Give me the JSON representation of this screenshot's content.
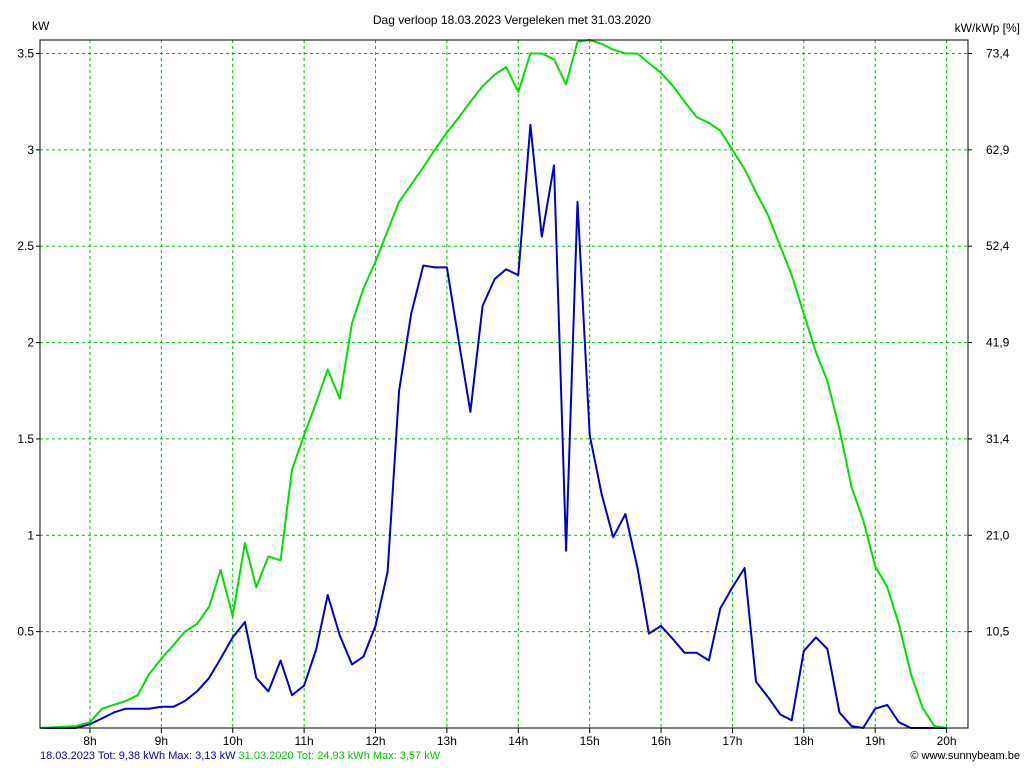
{
  "header": {
    "title": "Dag  verloop 18.03.2023   Vergeleken met 31.03.2020",
    "left_unit": "kW",
    "right_unit": "kW/kWp [%]"
  },
  "footer": {
    "blue_text": "18.03.2023 Tot: 9,38 kWh Max: 3,13 kW",
    "green_text": " 31.03.2020 Tot: 24,93 kWh Max: 3,57 kW",
    "credit": "© www.sunnybeam.be"
  },
  "colors": {
    "blue": "#0000cc",
    "green": "#00e000",
    "grid": "#00c000",
    "axis": "#000000"
  },
  "chart_data": {
    "type": "line",
    "title": "Dag  verloop 18.03.2023   Vergeleken met 31.03.2020",
    "ylabel": "kW",
    "ylabel_right": "kW/kWp [%]",
    "xlim": [
      7.3,
      20.3
    ],
    "ylim": [
      0,
      3.57
    ],
    "x_ticks": [
      8,
      9,
      10,
      11,
      12,
      13,
      14,
      15,
      16,
      17,
      18,
      19,
      20
    ],
    "x_tick_labels": [
      "8h",
      "9h",
      "10h",
      "11h",
      "12h",
      "13h",
      "14h",
      "15h",
      "16h",
      "17h",
      "18h",
      "19h",
      "20h"
    ],
    "y_ticks": [
      0.5,
      1,
      1.5,
      2,
      2.5,
      3,
      3.5
    ],
    "y_tick_labels": [
      "0.5",
      "1",
      "1.5",
      "2",
      "2.5",
      "3",
      "3.5"
    ],
    "y_right_ticks": [
      0.5,
      1,
      1.5,
      2,
      2.5,
      3,
      3.5
    ],
    "y_right_tick_labels": [
      "10,5",
      "21,0",
      "31,4",
      "41,9",
      "52,4",
      "62,9",
      "73,4"
    ],
    "grid": true,
    "legend": "none",
    "series": [
      {
        "name": "18.03.2023",
        "color": "#0000cc",
        "points": [
          [
            7.3,
            0
          ],
          [
            7.8,
            0
          ],
          [
            8.0,
            0.02
          ],
          [
            8.17,
            0.05
          ],
          [
            8.33,
            0.08
          ],
          [
            8.5,
            0.1
          ],
          [
            8.67,
            0.1
          ],
          [
            8.83,
            0.1
          ],
          [
            9.0,
            0.11
          ],
          [
            9.17,
            0.11
          ],
          [
            9.33,
            0.14
          ],
          [
            9.5,
            0.19
          ],
          [
            9.67,
            0.26
          ],
          [
            9.83,
            0.36
          ],
          [
            10.0,
            0.47
          ],
          [
            10.17,
            0.55
          ],
          [
            10.33,
            0.26
          ],
          [
            10.5,
            0.19
          ],
          [
            10.67,
            0.35
          ],
          [
            10.83,
            0.17
          ],
          [
            11.0,
            0.22
          ],
          [
            11.17,
            0.41
          ],
          [
            11.33,
            0.69
          ],
          [
            11.5,
            0.48
          ],
          [
            11.67,
            0.33
          ],
          [
            11.83,
            0.37
          ],
          [
            12.0,
            0.53
          ],
          [
            12.17,
            0.81
          ],
          [
            12.33,
            1.75
          ],
          [
            12.5,
            2.15
          ],
          [
            12.67,
            2.4
          ],
          [
            12.83,
            2.39
          ],
          [
            13.0,
            2.39
          ],
          [
            13.17,
            2.0
          ],
          [
            13.33,
            1.64
          ],
          [
            13.5,
            2.19
          ],
          [
            13.67,
            2.33
          ],
          [
            13.83,
            2.38
          ],
          [
            14.0,
            2.35
          ],
          [
            14.17,
            3.13
          ],
          [
            14.33,
            2.55
          ],
          [
            14.5,
            2.92
          ],
          [
            14.67,
            0.92
          ],
          [
            14.83,
            2.73
          ],
          [
            15.0,
            1.52
          ],
          [
            15.17,
            1.21
          ],
          [
            15.33,
            0.99
          ],
          [
            15.5,
            1.11
          ],
          [
            15.67,
            0.83
          ],
          [
            15.83,
            0.49
          ],
          [
            16.0,
            0.53
          ],
          [
            16.17,
            0.46
          ],
          [
            16.33,
            0.39
          ],
          [
            16.5,
            0.39
          ],
          [
            16.67,
            0.35
          ],
          [
            16.83,
            0.62
          ],
          [
            17.0,
            0.73
          ],
          [
            17.17,
            0.83
          ],
          [
            17.33,
            0.24
          ],
          [
            17.5,
            0.16
          ],
          [
            17.67,
            0.07
          ],
          [
            17.83,
            0.04
          ],
          [
            18.0,
            0.4
          ],
          [
            18.17,
            0.47
          ],
          [
            18.33,
            0.41
          ],
          [
            18.5,
            0.08
          ],
          [
            18.67,
            0.01
          ],
          [
            18.83,
            0.0
          ],
          [
            19.0,
            0.1
          ],
          [
            19.17,
            0.12
          ],
          [
            19.33,
            0.03
          ],
          [
            19.5,
            0.0
          ],
          [
            19.67,
            0.0
          ],
          [
            19.83,
            0.0
          ],
          [
            20.0,
            0.0
          ]
        ]
      },
      {
        "name": "31.03.2020",
        "color": "#00e000",
        "points": [
          [
            7.3,
            0
          ],
          [
            7.8,
            0.01
          ],
          [
            8.0,
            0.03
          ],
          [
            8.17,
            0.1
          ],
          [
            8.33,
            0.12
          ],
          [
            8.5,
            0.14
          ],
          [
            8.67,
            0.17
          ],
          [
            8.83,
            0.28
          ],
          [
            9.0,
            0.36
          ],
          [
            9.17,
            0.43
          ],
          [
            9.33,
            0.5
          ],
          [
            9.5,
            0.54
          ],
          [
            9.67,
            0.63
          ],
          [
            9.83,
            0.82
          ],
          [
            10.0,
            0.58
          ],
          [
            10.17,
            0.96
          ],
          [
            10.33,
            0.73
          ],
          [
            10.5,
            0.89
          ],
          [
            10.67,
            0.87
          ],
          [
            10.83,
            1.34
          ],
          [
            11.0,
            1.52
          ],
          [
            11.17,
            1.69
          ],
          [
            11.33,
            1.86
          ],
          [
            11.5,
            1.71
          ],
          [
            11.67,
            2.1
          ],
          [
            11.83,
            2.28
          ],
          [
            12.0,
            2.42
          ],
          [
            12.17,
            2.58
          ],
          [
            12.33,
            2.73
          ],
          [
            12.5,
            2.82
          ],
          [
            12.67,
            2.91
          ],
          [
            12.83,
            3.0
          ],
          [
            13.0,
            3.09
          ],
          [
            13.17,
            3.17
          ],
          [
            13.33,
            3.25
          ],
          [
            13.5,
            3.33
          ],
          [
            13.67,
            3.39
          ],
          [
            13.83,
            3.43
          ],
          [
            14.0,
            3.3
          ],
          [
            14.17,
            3.5
          ],
          [
            14.33,
            3.5
          ],
          [
            14.5,
            3.47
          ],
          [
            14.67,
            3.34
          ],
          [
            14.83,
            3.56
          ],
          [
            15.0,
            3.57
          ],
          [
            15.17,
            3.55
          ],
          [
            15.33,
            3.52
          ],
          [
            15.5,
            3.5
          ],
          [
            15.67,
            3.5
          ],
          [
            15.83,
            3.45
          ],
          [
            16.0,
            3.4
          ],
          [
            16.17,
            3.33
          ],
          [
            16.33,
            3.25
          ],
          [
            16.5,
            3.17
          ],
          [
            16.67,
            3.14
          ],
          [
            16.83,
            3.1
          ],
          [
            17.0,
            3.0
          ],
          [
            17.17,
            2.9
          ],
          [
            17.33,
            2.78
          ],
          [
            17.5,
            2.66
          ],
          [
            17.67,
            2.5
          ],
          [
            17.83,
            2.35
          ],
          [
            18.0,
            2.15
          ],
          [
            18.17,
            1.95
          ],
          [
            18.33,
            1.8
          ],
          [
            18.5,
            1.55
          ],
          [
            18.67,
            1.25
          ],
          [
            18.83,
            1.08
          ],
          [
            19.0,
            0.84
          ],
          [
            19.17,
            0.73
          ],
          [
            19.33,
            0.54
          ],
          [
            19.5,
            0.28
          ],
          [
            19.67,
            0.1
          ],
          [
            19.83,
            0.01
          ],
          [
            20.0,
            0.0
          ]
        ]
      }
    ]
  }
}
